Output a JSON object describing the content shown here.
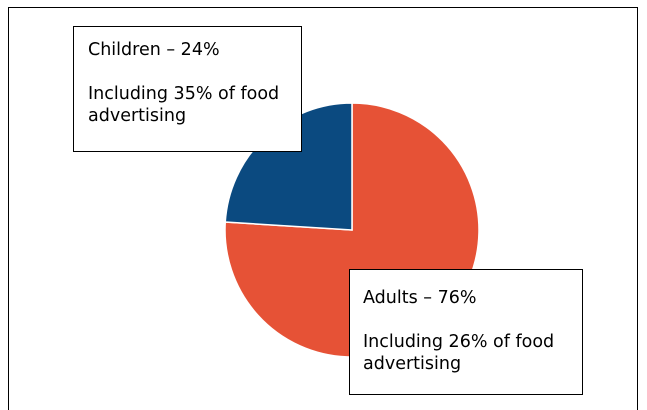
{
  "chart_data": {
    "type": "pie",
    "title": "",
    "slices": [
      {
        "label": "Children",
        "value": 24,
        "color": "#0b4a80",
        "callout_heading": "Children – 24%",
        "callout_detail": [
          "Including 35% of food",
          "advertising"
        ]
      },
      {
        "label": "Adults",
        "value": 76,
        "color": "#e65236",
        "callout_heading": "Adults – 76%",
        "callout_detail": [
          "Including 26% of food",
          "advertising"
        ]
      }
    ]
  }
}
